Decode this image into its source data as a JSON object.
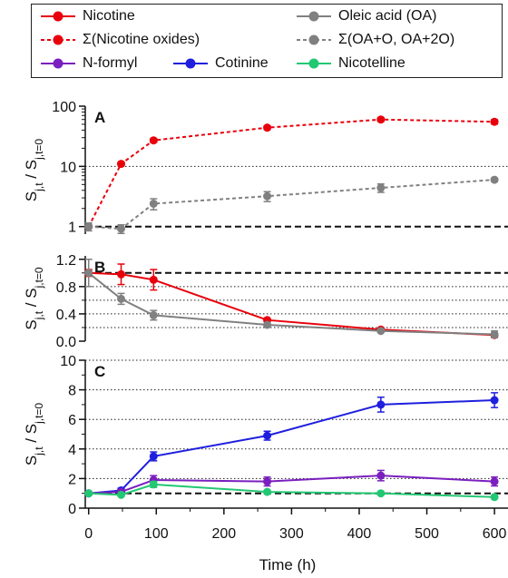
{
  "legend": {
    "nicotine": "Nicotine",
    "nicotine_oxides": "Σ(Nicotine oxides)",
    "nformyl": "N-formyl",
    "cotinine": "Cotinine",
    "oa": "Oleic acid (OA)",
    "oa_oxides": "Σ(OA+O, OA+2O)",
    "nicotelline": "Nicotelline"
  },
  "colors": {
    "nicotine": "#e8000b",
    "oa": "#808080",
    "nformyl": "#7a1fbf",
    "cotinine": "#1f1fde",
    "nicotelline": "#22c772"
  },
  "xaxis": {
    "label": "Time (h)",
    "ticks": [
      0,
      100,
      200,
      300,
      400,
      500,
      600
    ],
    "range": [
      -5,
      620
    ]
  },
  "chart_data": [
    {
      "type": "line",
      "panel_label": "A",
      "ylabel": "Sj,t / Sj,t=0",
      "yscale": "log",
      "ylim": [
        0.75,
        100
      ],
      "yticks": [
        1,
        10,
        100
      ],
      "series": [
        {
          "name": "Σ(Nicotine oxides)",
          "color_key": "nicotine",
          "dashed": true,
          "x": [
            0,
            48,
            96,
            264,
            432,
            600
          ],
          "y": [
            1.0,
            11,
            27,
            44,
            60,
            55
          ],
          "err": [
            0.05,
            0.8,
            2.0,
            3.0,
            4.0,
            4.5
          ]
        },
        {
          "name": "Σ(OA+O, OA+2O)",
          "color_key": "oa",
          "dashed": true,
          "x": [
            0,
            48,
            96,
            264,
            432,
            600
          ],
          "y": [
            1.0,
            0.92,
            2.4,
            3.2,
            4.4,
            6.0
          ],
          "err": [
            0.15,
            0.15,
            0.5,
            0.6,
            0.7,
            0.3
          ]
        }
      ]
    },
    {
      "type": "line",
      "panel_label": "B",
      "ylabel": "Sj,t / Sj,t=0",
      "yscale": "linear",
      "ylim": [
        0,
        1.25
      ],
      "yticks": [
        0.0,
        0.4,
        0.8,
        1.2
      ],
      "series": [
        {
          "name": "Nicotine",
          "color_key": "nicotine",
          "dashed": false,
          "x": [
            0,
            48,
            96,
            264,
            432,
            600
          ],
          "y": [
            1.0,
            0.98,
            0.9,
            0.31,
            0.17,
            0.09
          ],
          "err": [
            0.05,
            0.15,
            0.15,
            0.02,
            0.02,
            0.02
          ]
        },
        {
          "name": "Oleic acid (OA)",
          "color_key": "oa",
          "dashed": false,
          "x": [
            0,
            48,
            96,
            264,
            432,
            600
          ],
          "y": [
            1.0,
            0.62,
            0.38,
            0.24,
            0.15,
            0.1
          ],
          "err": [
            0.2,
            0.08,
            0.07,
            0.02,
            0.02,
            0.05
          ]
        }
      ]
    },
    {
      "type": "line",
      "panel_label": "C",
      "ylabel": "Sj,t / Sj,t=0",
      "yscale": "linear",
      "ylim": [
        0,
        10
      ],
      "yticks": [
        0,
        2,
        4,
        6,
        8,
        10
      ],
      "series": [
        {
          "name": "Cotinine",
          "color_key": "cotinine",
          "dashed": false,
          "x": [
            0,
            48,
            96,
            264,
            432,
            600
          ],
          "y": [
            1.0,
            1.2,
            3.5,
            4.9,
            7.0,
            7.3
          ],
          "err": [
            0.05,
            0.15,
            0.3,
            0.3,
            0.5,
            0.5
          ]
        },
        {
          "name": "N-formyl",
          "color_key": "nformyl",
          "dashed": false,
          "x": [
            0,
            48,
            96,
            264,
            432,
            600
          ],
          "y": [
            1.0,
            1.1,
            1.9,
            1.8,
            2.2,
            1.8
          ],
          "err": [
            0.05,
            0.1,
            0.3,
            0.3,
            0.35,
            0.3
          ]
        },
        {
          "name": "Nicotelline",
          "color_key": "nicotelline",
          "dashed": false,
          "x": [
            0,
            48,
            96,
            264,
            432,
            600
          ],
          "y": [
            1.0,
            0.9,
            1.6,
            1.1,
            1.0,
            0.75
          ],
          "err": [
            0.05,
            0.1,
            0.2,
            0.1,
            0.1,
            0.1
          ]
        }
      ]
    }
  ]
}
